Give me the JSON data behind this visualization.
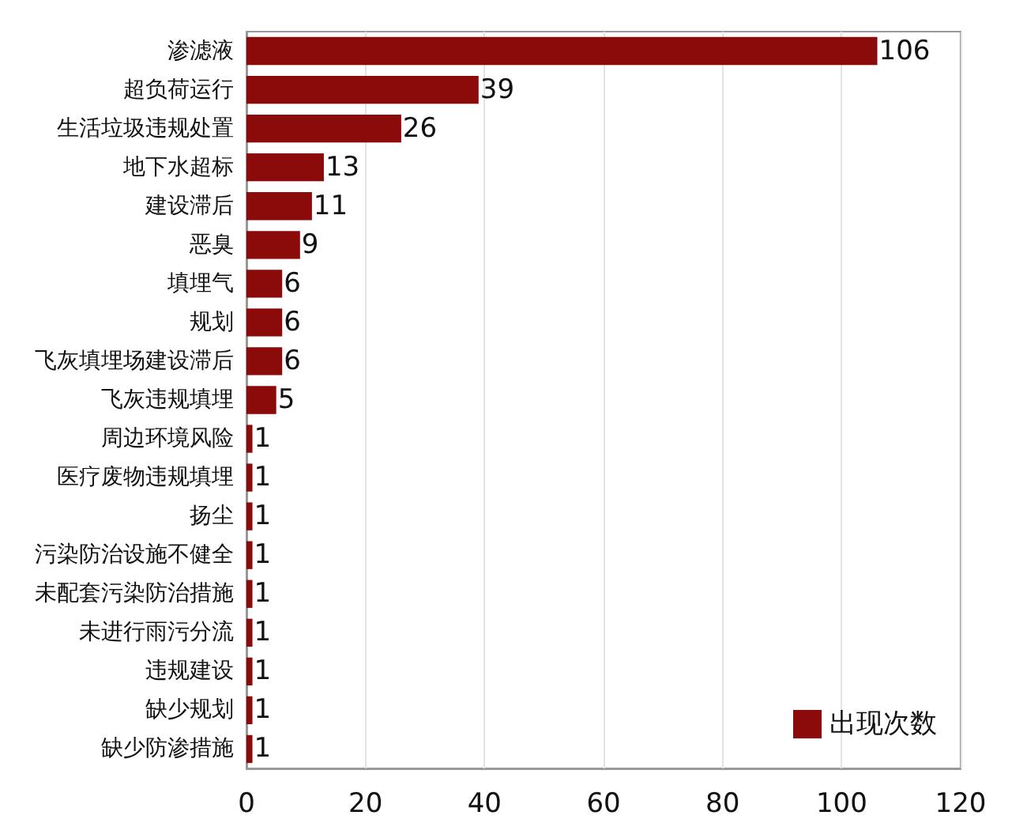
{
  "chart_data": {
    "type": "bar",
    "orientation": "horizontal",
    "categories": [
      "渗滤液",
      "超负荷运行",
      "生活垃圾违规处置",
      "地下水超标",
      "建设滞后",
      "恶臭",
      "填埋气",
      "规划",
      "飞灰填埋场建设滞后",
      "飞灰违规填埋",
      "周边环境风险",
      "医疗废物违规填埋",
      "扬尘",
      "污染防治设施不健全",
      "未配套污染防治措施",
      "未进行雨污分流",
      "违规建设",
      "缺少规划",
      "缺少防渗措施"
    ],
    "series": [
      {
        "name": "出现次数",
        "color": "#8b0a0a",
        "values": [
          106,
          39,
          26,
          13,
          11,
          9,
          6,
          6,
          6,
          5,
          1,
          1,
          1,
          1,
          1,
          1,
          1,
          1,
          1
        ]
      }
    ],
    "xlim": [
      0,
      120
    ],
    "xticks": [
      0,
      20,
      40,
      60,
      80,
      100,
      120
    ],
    "grid": "x",
    "legend": "bottom right",
    "data_labels": true
  }
}
